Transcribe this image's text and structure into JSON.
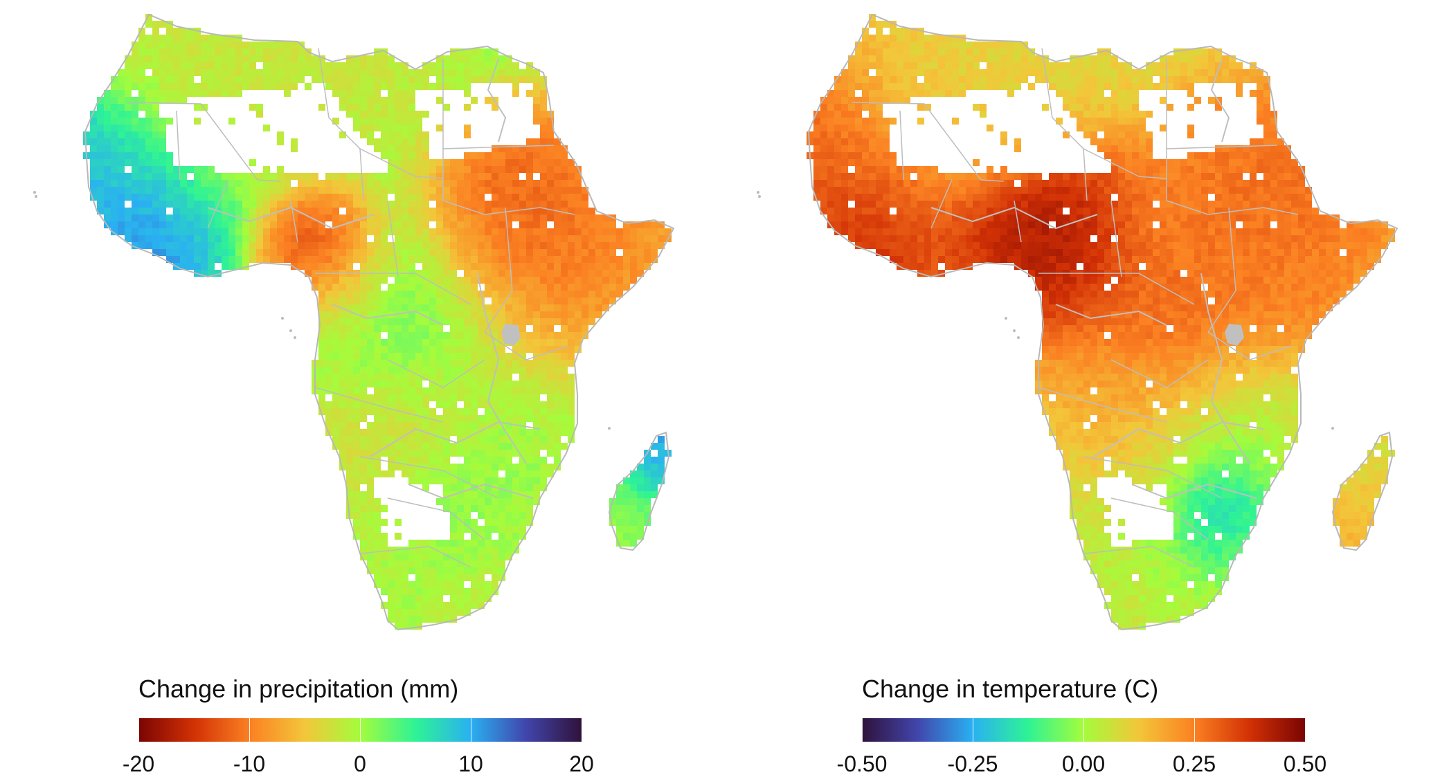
{
  "maps": [
    {
      "id": "precipitation",
      "legend_title": "Change in precipitation (mm)",
      "scale_min": -20,
      "scale_max": 20,
      "colorbar_stops": [
        "#7a0403",
        "#d23105",
        "#fb8022",
        "#f3c63a",
        "#a4fc3c",
        "#2ef395",
        "#2ab0f2",
        "#4145ab",
        "#30123b"
      ],
      "ticks": [
        {
          "value": -20,
          "label": "-20"
        },
        {
          "value": -10,
          "label": "-10"
        },
        {
          "value": 0,
          "label": "0"
        },
        {
          "value": 10,
          "label": "10"
        },
        {
          "value": 20,
          "label": "20"
        }
      ],
      "field": [
        {
          "value": 2,
          "sigma": 1.0
        },
        {
          "value": 9,
          "sigma": 0.55
        },
        {
          "value": 13,
          "sigma": 0.35
        },
        {
          "value": -16,
          "sigma": 0.28
        },
        {
          "value": -12,
          "sigma": 0.35
        },
        {
          "value": 9,
          "sigma": 0.45
        },
        {
          "value": 4,
          "sigma": 0.5
        },
        {
          "value": -8,
          "sigma": 0.6
        },
        {
          "value": -5,
          "sigma": 0.7
        },
        {
          "value": 10,
          "sigma": 0.5
        },
        {
          "value": 6,
          "sigma": 0.55
        },
        {
          "value": -11,
          "sigma": 0.6
        },
        {
          "value": -15,
          "sigma": 0.45
        },
        {
          "value": -9,
          "sigma": 0.5
        },
        {
          "value": 14,
          "sigma": 0.25
        },
        {
          "value": 3,
          "sigma": 0.5
        },
        {
          "value": -2,
          "sigma": 0.6
        }
      ]
    },
    {
      "id": "temperature",
      "legend_title": "Change in temperature (C)",
      "scale_min": -0.5,
      "scale_max": 0.5,
      "colorbar_stops": [
        "#30123b",
        "#4145ab",
        "#2ab0f2",
        "#2ef395",
        "#a4fc3c",
        "#f3c63a",
        "#fb8022",
        "#d23105",
        "#7a0403"
      ],
      "ticks": [
        {
          "value": -0.5,
          "label": "-0.50"
        },
        {
          "value": -0.25,
          "label": "-0.25"
        },
        {
          "value": 0,
          "label": "0.00"
        },
        {
          "value": 0.25,
          "label": "0.25"
        },
        {
          "value": 0.5,
          "label": "0.50"
        }
      ],
      "field": [
        {
          "value": 0.05,
          "sigma": 1.0
        },
        {
          "value": 0.28,
          "sigma": 0.7
        },
        {
          "value": 0.45,
          "sigma": 0.45
        },
        {
          "value": 0.5,
          "sigma": 0.45
        },
        {
          "value": 0.5,
          "sigma": 0.35
        },
        {
          "value": 0.3,
          "sigma": 0.6
        },
        {
          "value": 0.42,
          "sigma": 0.35
        },
        {
          "value": 0.38,
          "sigma": 0.45
        },
        {
          "value": -0.02,
          "sigma": 0.6
        },
        {
          "value": -0.05,
          "sigma": 0.5
        },
        {
          "value": -0.35,
          "sigma": 0.25
        },
        {
          "value": -0.2,
          "sigma": 0.3
        },
        {
          "value": 0.3,
          "sigma": 0.5
        },
        {
          "value": 0.25,
          "sigma": 0.4
        },
        {
          "value": 0.05,
          "sigma": 0.55
        },
        {
          "value": 0.2,
          "sigma": 0.5
        },
        {
          "value": 0.1,
          "sigma": 0.55
        }
      ]
    }
  ]
}
